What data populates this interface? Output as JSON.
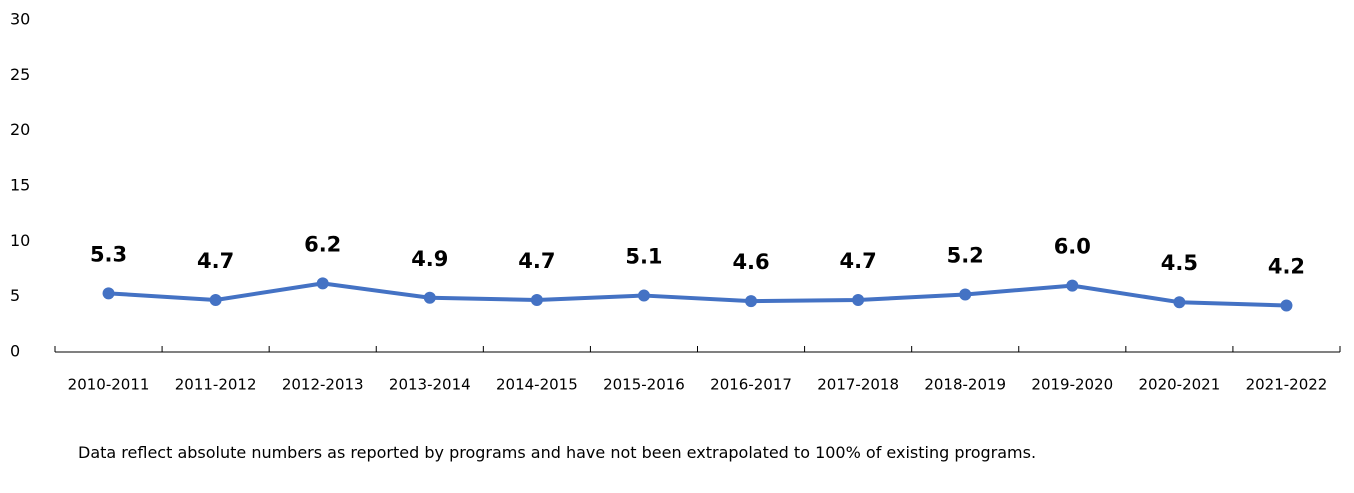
{
  "chart_data": {
    "type": "line",
    "categories": [
      "2010-2011",
      "2011-2012",
      "2012-2013",
      "2013-2014",
      "2014-2015",
      "2015-2016",
      "2016-2017",
      "2017-2018",
      "2018-2019",
      "2019-2020",
      "2020-2021",
      "2021-2022"
    ],
    "series": [
      {
        "color": "#4472c4",
        "values": [
          5.3,
          4.7,
          6.2,
          4.9,
          4.7,
          5.1,
          4.6,
          4.7,
          5.2,
          6.0,
          4.5,
          4.2
        ],
        "value_labels": [
          "5.3",
          "4.7",
          "6.2",
          "4.9",
          "4.7",
          "5.1",
          "4.6",
          "4.7",
          "5.2",
          "6.0",
          "4.5",
          "4.2"
        ]
      }
    ],
    "ylim": [
      0,
      30
    ],
    "yticks": [
      0,
      5,
      10,
      15,
      20,
      25,
      30
    ],
    "grid": false,
    "footnote": "Data reflect absolute numbers as reported by programs and have not been extrapolated to 100% of existing programs."
  }
}
